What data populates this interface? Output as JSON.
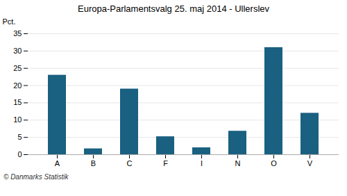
{
  "chart_data": {
    "type": "bar",
    "title": "Europa-Parlamentsvalg 25. maj 2014 - Ullerslev",
    "categories": [
      "A",
      "B",
      "C",
      "F",
      "I",
      "N",
      "O",
      "V"
    ],
    "values": [
      23,
      1.7,
      19,
      5.2,
      2.0,
      6.8,
      31,
      12
    ],
    "color": "#1a6080",
    "y_label": "Pct.",
    "ylim": [
      0,
      35
    ],
    "yticks": [
      0,
      5,
      10,
      15,
      20,
      25,
      30,
      35
    ],
    "grid": true,
    "caption": "© Danmarks Statistik"
  }
}
